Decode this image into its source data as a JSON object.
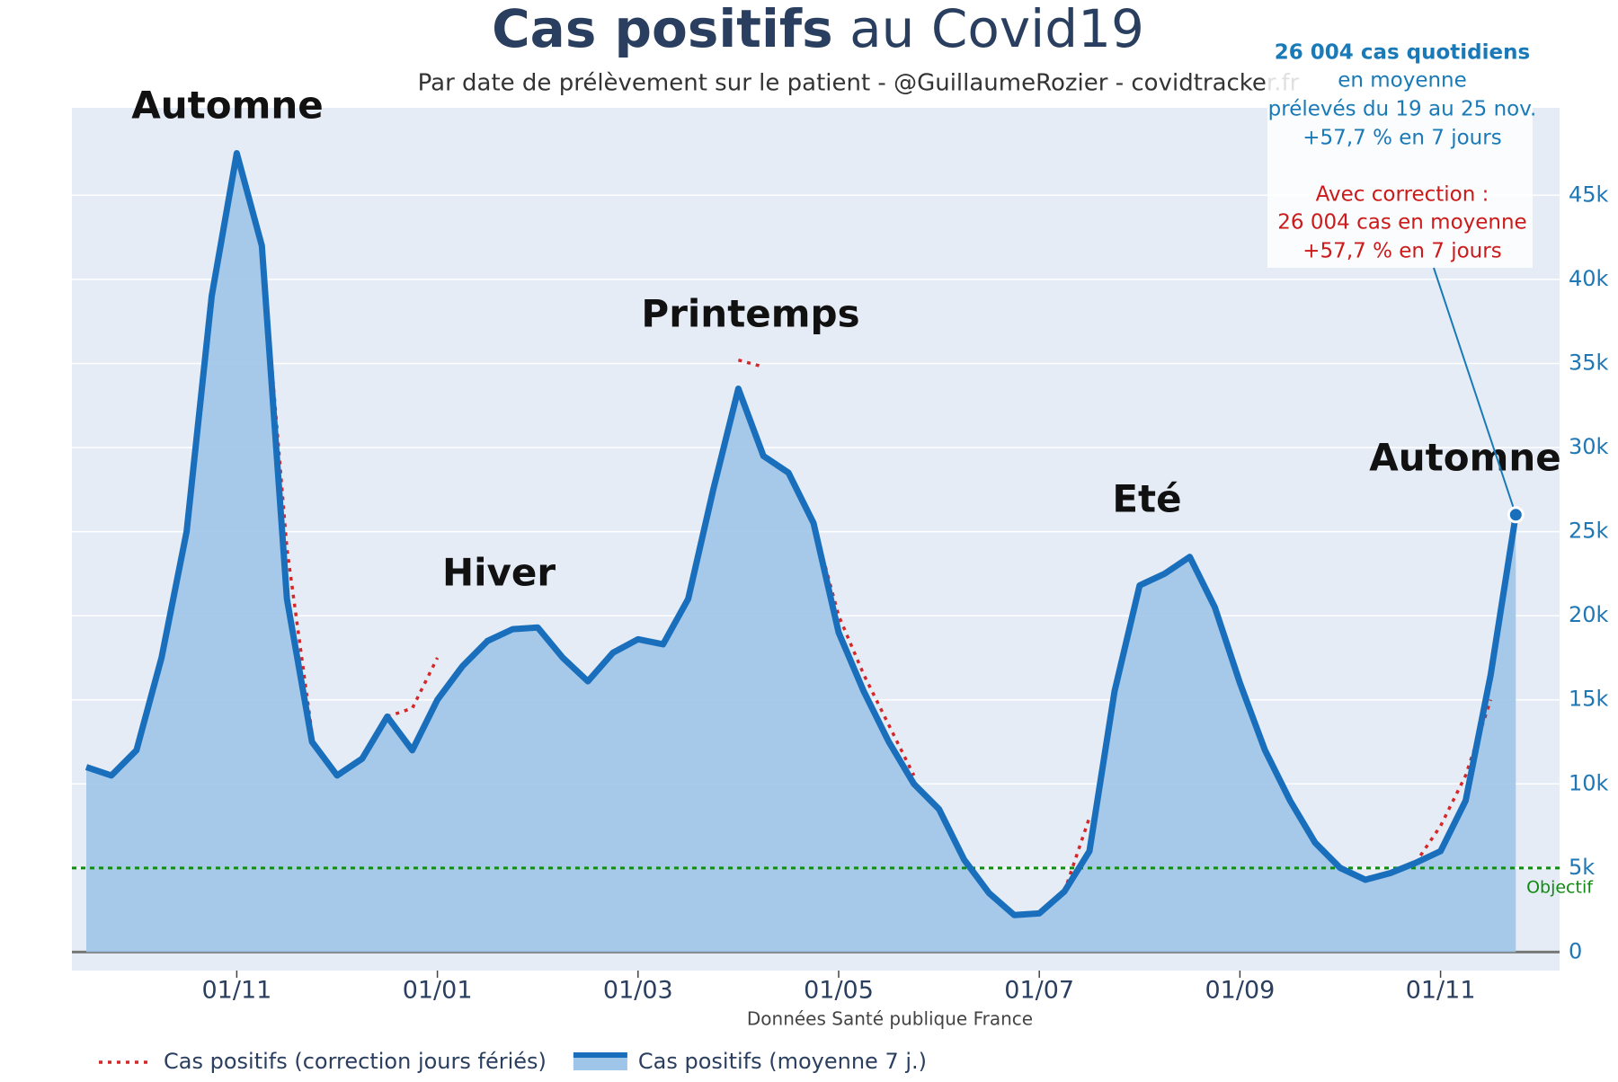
{
  "chart_data": {
    "type": "line",
    "title_bold": "Cas positifs",
    "title_rest": "au Covid19",
    "subtitle": "Par date de prélèvement sur le patient - @GuillaumeRozier - covidtracker.fr",
    "x_label": "Données Santé publique France",
    "categories": [
      null,
      null,
      null,
      null,
      null,
      null,
      "01/11",
      null,
      null,
      null,
      null,
      null,
      null,
      null,
      "01/01",
      null,
      null,
      null,
      null,
      null,
      null,
      null,
      "01/03",
      null,
      null,
      null,
      null,
      null,
      null,
      null,
      "01/05",
      null,
      null,
      null,
      null,
      null,
      null,
      null,
      "01/07",
      null,
      null,
      null,
      null,
      null,
      null,
      null,
      "01/09",
      null,
      null,
      null,
      null,
      null,
      null,
      null,
      "01/11",
      null,
      null,
      null
    ],
    "series": [
      {
        "name": "Cas positifs (correction jours fériés)",
        "color": "#d62728",
        "dash": true,
        "values": [
          null,
          null,
          null,
          null,
          null,
          null,
          null,
          42000,
          24000,
          13000,
          null,
          null,
          14000,
          14500,
          17500,
          null,
          null,
          null,
          null,
          null,
          null,
          null,
          null,
          null,
          null,
          null,
          35200,
          34800,
          null,
          25500,
          20000,
          16500,
          13500,
          10500,
          null,
          null,
          null,
          null,
          null,
          3600,
          8000,
          null,
          null,
          null,
          null,
          null,
          null,
          null,
          null,
          null,
          null,
          null,
          null,
          5300,
          7500,
          10500,
          15000,
          null
        ]
      },
      {
        "name": "Cas positifs (moyenne 7 j.)",
        "color": "#1a6fbd",
        "area_color": "#9fc5e8",
        "values": [
          11000,
          10500,
          12000,
          17500,
          25000,
          39000,
          47500,
          42000,
          21000,
          12500,
          10500,
          11500,
          14000,
          12000,
          15000,
          17000,
          18500,
          19200,
          19300,
          17500,
          16100,
          17800,
          18600,
          18300,
          21000,
          27500,
          33500,
          29500,
          28500,
          25500,
          19000,
          15500,
          12500,
          10000,
          8500,
          5500,
          3500,
          2200,
          2300,
          3600,
          6000,
          15500,
          21800,
          22500,
          23500,
          20500,
          16000,
          12000,
          9000,
          6500,
          5000,
          4300,
          4700,
          5300,
          6000,
          9000,
          16500,
          26004
        ]
      }
    ],
    "ylim": [
      -1100,
      50200
    ],
    "yticks": [
      0,
      {
        "value": 5000,
        "label": "5k"
      },
      {
        "value": 10000,
        "label": "10k"
      },
      {
        "value": 15000,
        "label": "15k"
      },
      {
        "value": 20000,
        "label": "20k"
      },
      {
        "value": 25000,
        "label": "25k"
      },
      {
        "value": 30000,
        "label": "30k"
      },
      {
        "value": 35000,
        "label": "35k"
      },
      {
        "value": 40000,
        "label": "40k"
      },
      {
        "value": 45000,
        "label": "45k"
      }
    ],
    "grid": true,
    "objective": {
      "value": 5000,
      "label": "Objectif",
      "color": "#138a13"
    },
    "season_labels": [
      "Automne",
      "Hiver",
      "Printemps",
      "Eté",
      "Automne"
    ],
    "annotation": {
      "lines": [
        "26 004 cas quotidiens",
        "en moyenne",
        "prélevés du 19 au 25 nov.",
        "+57,7 % en 7 jours"
      ],
      "correction_lines": [
        "Avec correction :",
        "26 004 cas en moyenne",
        "+57,7 % en 7 jours"
      ],
      "color": "#1a7ab8",
      "correction_color": "#cc1a1a"
    },
    "legend": "bottom-left"
  }
}
